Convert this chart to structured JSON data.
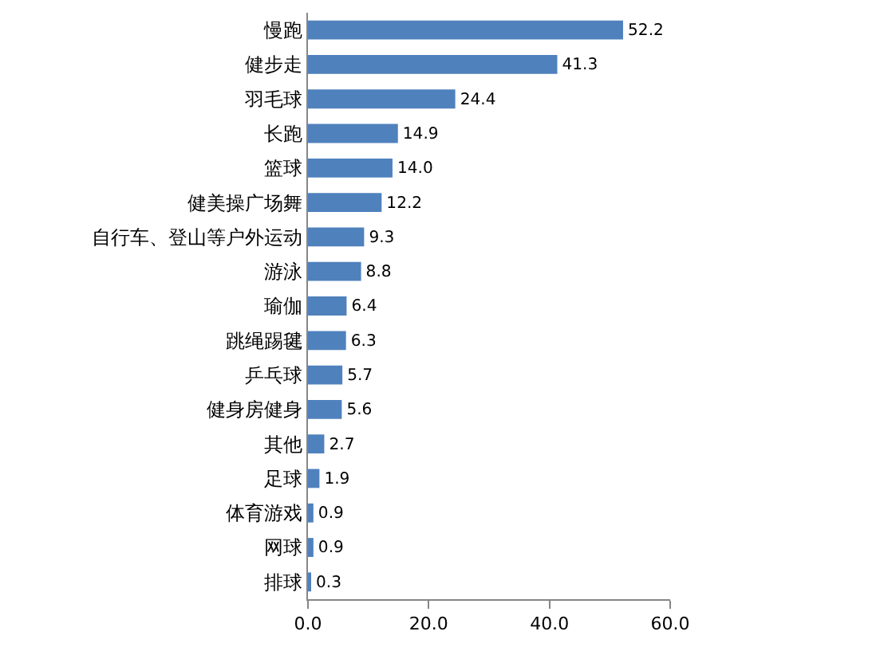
{
  "chart_data": {
    "type": "bar",
    "orientation": "horizontal",
    "categories": [
      "慢跑",
      "健步走",
      "羽毛球",
      "长跑",
      "篮球",
      "健美操广场舞",
      "自行车、登山等户外运动",
      "游泳",
      "瑜伽",
      "跳绳踢毽",
      "乒乓球",
      "健身房健身",
      "其他",
      "足球",
      "体育游戏",
      "网球",
      "排球"
    ],
    "values": [
      52.2,
      41.3,
      24.4,
      14.9,
      14.0,
      12.2,
      9.3,
      8.8,
      6.4,
      6.3,
      5.7,
      5.6,
      2.7,
      1.9,
      0.9,
      0.9,
      0.3
    ],
    "value_labels": [
      "52.2",
      "41.3",
      "24.4",
      "14.9",
      "14.0",
      "12.2",
      "9.3",
      "8.8",
      "6.4",
      "6.3",
      "5.7",
      "5.6",
      "2.7",
      "1.9",
      "0.9",
      "0.9",
      "0.3"
    ],
    "color": "#4f81bd",
    "xlim": [
      0,
      60
    ],
    "xticks": [
      {
        "value": 0,
        "label": "0.0"
      },
      {
        "value": 20,
        "label": "20.0"
      },
      {
        "value": 40,
        "label": "40.0"
      },
      {
        "value": 60,
        "label": "60.0"
      }
    ]
  }
}
